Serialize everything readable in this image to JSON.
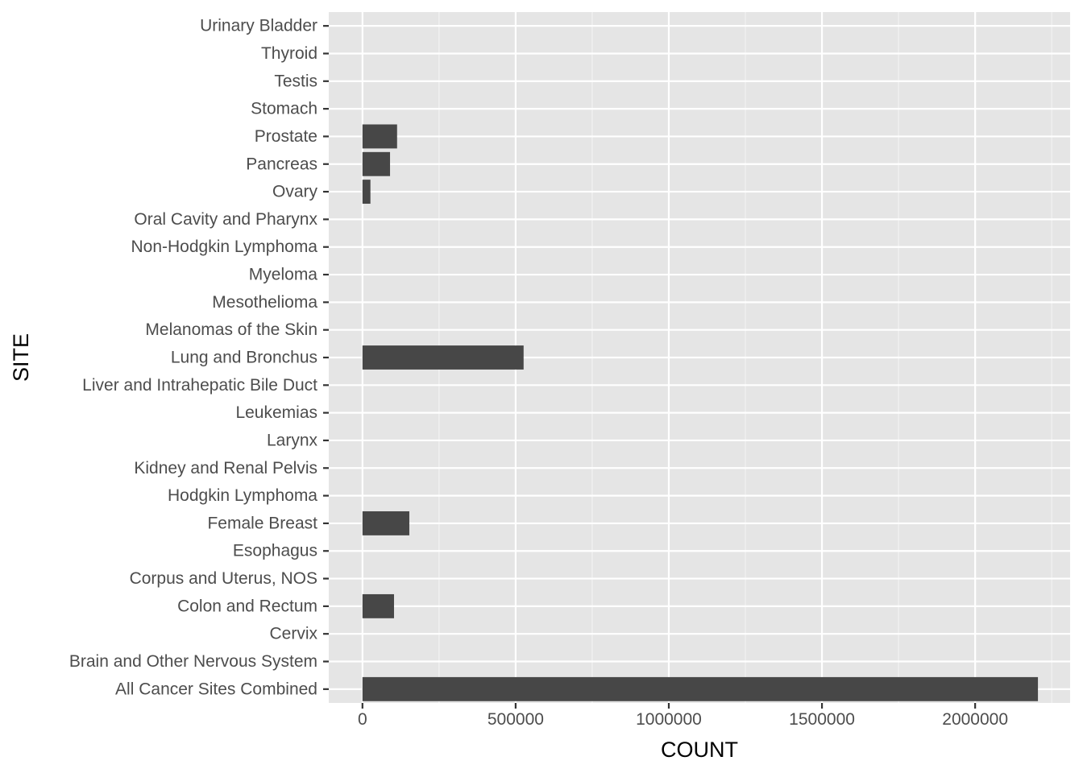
{
  "chart_data": {
    "type": "bar",
    "orientation": "horizontal",
    "title": "",
    "xlabel": "COUNT",
    "ylabel": "SITE",
    "xlim": [
      -110000,
      2310000
    ],
    "xticks": [
      0,
      500000,
      1000000,
      1500000,
      2000000
    ],
    "xtick_labels": [
      "0",
      "500000",
      "1000000",
      "1500000",
      "2000000"
    ],
    "grid": true,
    "legend": "none",
    "categories": [
      "All Cancer Sites Combined",
      "Brain and Other Nervous System",
      "Cervix",
      "Colon and Rectum",
      "Corpus and Uterus, NOS",
      "Esophagus",
      "Female Breast",
      "Hodgkin Lymphoma",
      "Kidney and Renal Pelvis",
      "Larynx",
      "Leukemias",
      "Liver and Intrahepatic Bile Duct",
      "Lung and Bronchus",
      "Melanomas of the Skin",
      "Mesothelioma",
      "Myeloma",
      "Non-Hodgkin Lymphoma",
      "Oral Cavity and Pharynx",
      "Ovary",
      "Pancreas",
      "Prostate",
      "Stomach",
      "Testis",
      "Thyroid",
      "Urinary Bladder"
    ],
    "values": [
      2205000,
      0,
      0,
      103000,
      0,
      0,
      153000,
      0,
      0,
      0,
      0,
      0,
      526000,
      0,
      0,
      0,
      0,
      0,
      26000,
      90000,
      113000,
      0,
      0,
      0,
      0
    ],
    "colors": {
      "panel": "#e5e5e5",
      "grid_major": "#ffffff",
      "grid_minor": "#f2f2f2",
      "bar": "#474747",
      "tick": "#333333",
      "tick_label": "#4d4d4d",
      "axis_title": "#000000"
    }
  }
}
